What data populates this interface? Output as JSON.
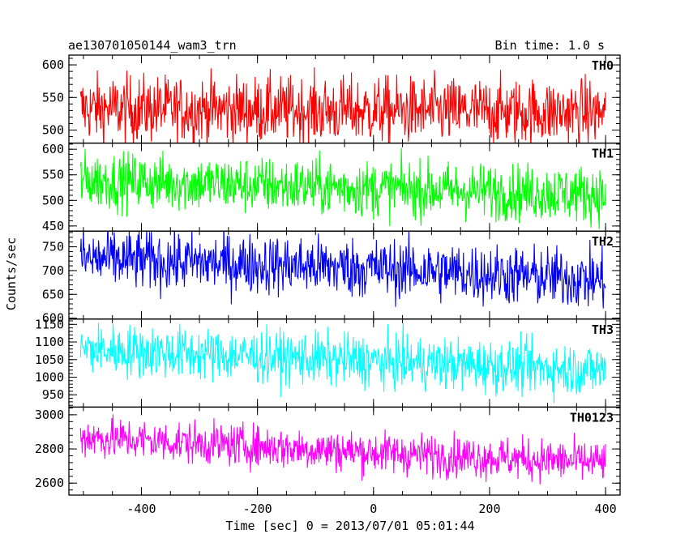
{
  "chart_data": {
    "type": "line",
    "title_left": "ae130701050144_wam3_trn",
    "title_right": "Bin time: 1.0 s",
    "xlabel": "Time [sec] 0 = 2013/07/01 05:01:44",
    "ylabel": "Counts/sec",
    "xlim": [
      -525,
      425
    ],
    "xticks": [
      -400,
      -200,
      0,
      200,
      400
    ],
    "x_range": [
      -505,
      400
    ],
    "panels": [
      {
        "name": "TH0",
        "color": "#ff0000",
        "ylim": [
          480,
          615
        ],
        "yticks": [
          500,
          550,
          600
        ],
        "trend": [
          [
            -505,
            533
          ],
          [
            400,
            527
          ]
        ],
        "noise": 26
      },
      {
        "name": "TH1",
        "color": "#00ff00",
        "ylim": [
          440,
          612
        ],
        "yticks": [
          450,
          500,
          550,
          600
        ],
        "trend": [
          [
            -505,
            540
          ],
          [
            0,
            523
          ],
          [
            400,
            512
          ]
        ],
        "noise": 28
      },
      {
        "name": "TH2",
        "color": "#0000ff",
        "ylim": [
          598,
          783
        ],
        "yticks": [
          600,
          650,
          700,
          750
        ],
        "trend": [
          [
            -505,
            725
          ],
          [
            0,
            705
          ],
          [
            400,
            680
          ]
        ],
        "noise": 32
      },
      {
        "name": "TH3",
        "color": "#00ffff",
        "ylim": [
          915,
          1165
        ],
        "yticks": [
          950,
          1000,
          1050,
          1100,
          1150
        ],
        "trend": [
          [
            -505,
            1080
          ],
          [
            0,
            1045
          ],
          [
            400,
            1020
          ]
        ],
        "noise": 38
      },
      {
        "name": "TH0123",
        "color": "#ff00ff",
        "ylim": [
          2530,
          3045
        ],
        "yticks": [
          2600,
          2800,
          3000
        ],
        "trend": [
          [
            -505,
            2870
          ],
          [
            0,
            2780
          ],
          [
            400,
            2720
          ]
        ],
        "noise": 62
      }
    ]
  }
}
